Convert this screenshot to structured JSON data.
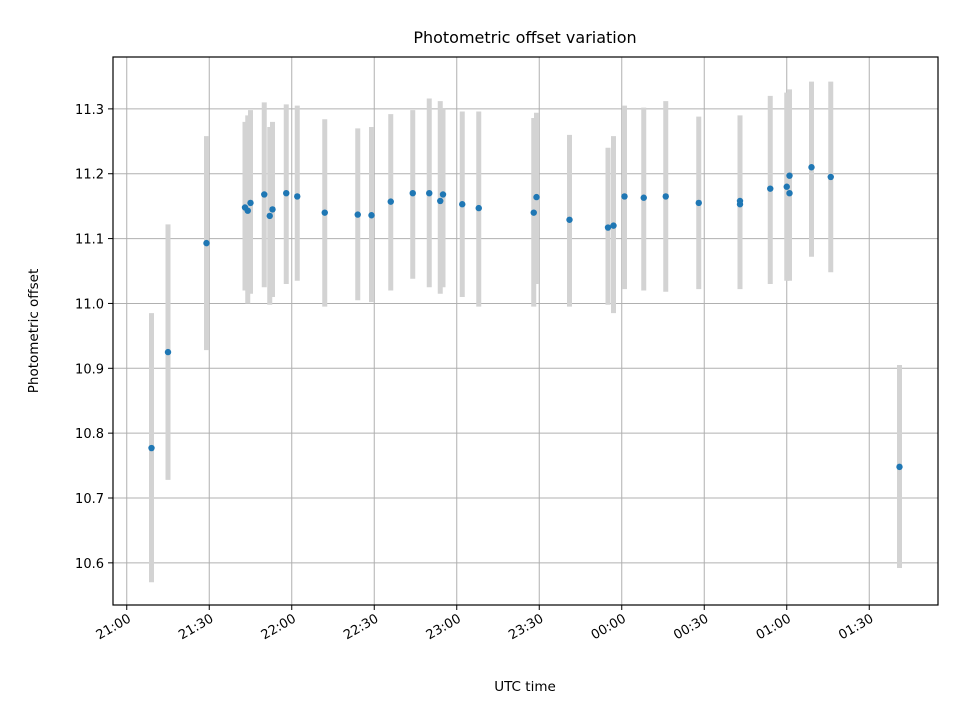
{
  "chart_data": {
    "type": "scatter",
    "title": "Photometric offset variation",
    "xlabel": "UTC time",
    "ylabel": "Photometric offset",
    "x_axis_type": "time",
    "x_start_label": "21:00",
    "x_ticks": [
      "21:00",
      "21:30",
      "22:00",
      "22:30",
      "23:00",
      "23:30",
      "00:00",
      "00:30",
      "01:00",
      "01:30"
    ],
    "xlim": [
      "20:55",
      "01:55"
    ],
    "ylim": [
      10.535,
      11.38
    ],
    "y_ticks": [
      10.6,
      10.7,
      10.8,
      10.9,
      11.0,
      11.1,
      11.2,
      11.3
    ],
    "grid": true,
    "marker_color": "#1f77b4",
    "errorbar_color": "#d3d3d3",
    "points": [
      {
        "x": "21:09",
        "y": 10.777,
        "ylo": 10.57,
        "yhi": 10.985
      },
      {
        "x": "21:15",
        "y": 10.925,
        "ylo": 10.728,
        "yhi": 11.122
      },
      {
        "x": "21:29",
        "y": 11.093,
        "ylo": 10.928,
        "yhi": 11.258
      },
      {
        "x": "21:43",
        "y": 11.148,
        "ylo": 11.02,
        "yhi": 11.28
      },
      {
        "x": "21:44",
        "y": 11.143,
        "ylo": 11.0,
        "yhi": 11.29
      },
      {
        "x": "21:45",
        "y": 11.155,
        "ylo": 11.015,
        "yhi": 11.298
      },
      {
        "x": "21:50",
        "y": 11.168,
        "ylo": 11.025,
        "yhi": 11.31
      },
      {
        "x": "21:52",
        "y": 11.135,
        "ylo": 10.998,
        "yhi": 11.272
      },
      {
        "x": "21:53",
        "y": 11.145,
        "ylo": 11.01,
        "yhi": 11.28
      },
      {
        "x": "21:58",
        "y": 11.17,
        "ylo": 11.03,
        "yhi": 11.307
      },
      {
        "x": "22:02",
        "y": 11.165,
        "ylo": 11.035,
        "yhi": 11.305
      },
      {
        "x": "22:12",
        "y": 11.14,
        "ylo": 10.995,
        "yhi": 11.284
      },
      {
        "x": "22:24",
        "y": 11.137,
        "ylo": 11.005,
        "yhi": 11.27
      },
      {
        "x": "22:29",
        "y": 11.136,
        "ylo": 11.002,
        "yhi": 11.272
      },
      {
        "x": "22:36",
        "y": 11.157,
        "ylo": 11.02,
        "yhi": 11.292
      },
      {
        "x": "22:44",
        "y": 11.17,
        "ylo": 11.038,
        "yhi": 11.298
      },
      {
        "x": "22:50",
        "y": 11.17,
        "ylo": 11.025,
        "yhi": 11.316
      },
      {
        "x": "22:54",
        "y": 11.158,
        "ylo": 11.015,
        "yhi": 11.312
      },
      {
        "x": "22:55",
        "y": 11.168,
        "ylo": 11.025,
        "yhi": 11.3
      },
      {
        "x": "23:02",
        "y": 11.153,
        "ylo": 11.01,
        "yhi": 11.296
      },
      {
        "x": "23:08",
        "y": 11.147,
        "ylo": 10.995,
        "yhi": 11.296
      },
      {
        "x": "23:28",
        "y": 11.14,
        "ylo": 10.995,
        "yhi": 11.286
      },
      {
        "x": "23:29",
        "y": 11.164,
        "ylo": 11.03,
        "yhi": 11.294
      },
      {
        "x": "23:41",
        "y": 11.129,
        "ylo": 10.995,
        "yhi": 11.26
      },
      {
        "x": "23:55",
        "y": 11.117,
        "ylo": 10.998,
        "yhi": 11.24
      },
      {
        "x": "23:57",
        "y": 11.12,
        "ylo": 10.985,
        "yhi": 11.258
      },
      {
        "x": "00:01",
        "y": 11.165,
        "ylo": 11.022,
        "yhi": 11.305
      },
      {
        "x": "00:08",
        "y": 11.163,
        "ylo": 11.02,
        "yhi": 11.302
      },
      {
        "x": "00:16",
        "y": 11.165,
        "ylo": 11.018,
        "yhi": 11.312
      },
      {
        "x": "00:28",
        "y": 11.155,
        "ylo": 11.022,
        "yhi": 11.288
      },
      {
        "x": "00:43",
        "y": 11.153,
        "ylo": 11.022,
        "yhi": 11.29
      },
      {
        "x": "00:43",
        "y": 11.158,
        "ylo": 11.03,
        "yhi": 11.285
      },
      {
        "x": "00:54",
        "y": 11.177,
        "ylo": 11.03,
        "yhi": 11.32
      },
      {
        "x": "01:00",
        "y": 11.18,
        "ylo": 11.035,
        "yhi": 11.325
      },
      {
        "x": "01:01",
        "y": 11.17,
        "ylo": 11.035,
        "yhi": 11.318
      },
      {
        "x": "01:01",
        "y": 11.197,
        "ylo": 11.062,
        "yhi": 11.33
      },
      {
        "x": "01:09",
        "y": 11.21,
        "ylo": 11.072,
        "yhi": 11.342
      },
      {
        "x": "01:16",
        "y": 11.195,
        "ylo": 11.048,
        "yhi": 11.342
      },
      {
        "x": "01:41",
        "y": 10.748,
        "ylo": 10.592,
        "yhi": 10.905
      }
    ]
  }
}
